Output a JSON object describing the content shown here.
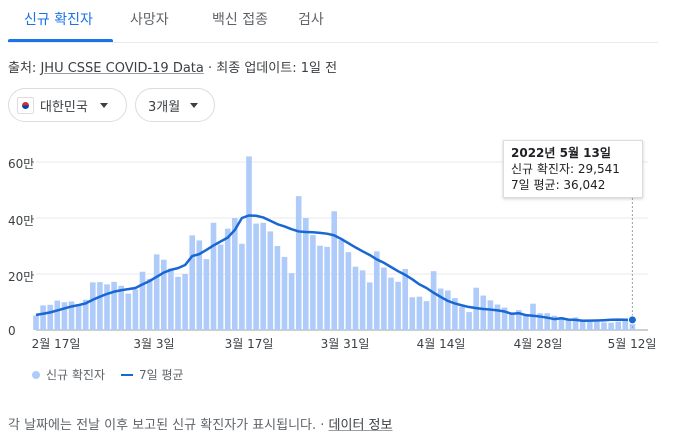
{
  "tabs": [
    {
      "label": "신규 확진자",
      "active": true
    },
    {
      "label": "사망자",
      "active": false
    },
    {
      "label": "백신 접종",
      "active": false
    },
    {
      "label": "검사",
      "active": false
    }
  ],
  "source": {
    "prefix": "출처:",
    "link": "JHU CSSE COVID-19 Data",
    "separator": "·",
    "updated": "최종 업데이트: 1일 전"
  },
  "filters": {
    "country": "대한민국",
    "period": "3개월"
  },
  "tooltip": {
    "date": "2022년 5월 13일",
    "cases": "신규 확진자: 29,541",
    "avg": "7일 평균: 36,042"
  },
  "legend": {
    "bars": "신규 확진자",
    "line": "7일 평균"
  },
  "footnote": {
    "text": "각 날짜에는 전날 이후 보고된 신규 확진자가 표시됩니다. ·",
    "link": "데이터 정보"
  },
  "colors": {
    "bar": "#aecbfa",
    "line": "#1967d2",
    "accent": "#1a73e8"
  },
  "chart_data": {
    "type": "bar",
    "y_tick_labels": [
      "0",
      "20만",
      "40만",
      "60만"
    ],
    "y_ticks": [
      0,
      200000,
      400000,
      600000
    ],
    "ylim": [
      0,
      620000
    ],
    "x_tick_labels": [
      "2월 17일",
      "3월 3일",
      "3월 17일",
      "3월 31일",
      "4월 14일",
      "4월 28일",
      "5월 12일"
    ],
    "x_tick_index": [
      0,
      14,
      28,
      42,
      56,
      70,
      84
    ],
    "series": [
      {
        "name": "신규 확진자",
        "values": [
          52000,
          88000,
          90000,
          105000,
          99000,
          102000,
          93000,
          108000,
          170000,
          171000,
          163000,
          172000,
          158000,
          130000,
          145000,
          208000,
          183000,
          270000,
          251000,
          220000,
          190000,
          200000,
          338000,
          320000,
          253000,
          383000,
          305000,
          362000,
          400000,
          308000,
          620000,
          380000,
          383000,
          352000,
          300000,
          261000,
          203000,
          478000,
          400000,
          339000,
          301000,
          297000,
          424000,
          321000,
          278000,
          226000,
          213000,
          170000,
          281000,
          223000,
          187000,
          172000,
          218000,
          117000,
          119000,
          103000,
          210000,
          148000,
          141000,
          114000,
          83000,
          64000,
          151000,
          123000,
          106000,
          91000,
          80000,
          62000,
          71000,
          50000,
          94000,
          60000,
          60000,
          51000,
          46000,
          40000,
          45000,
          38000,
          35000,
          29000,
          27000,
          26000,
          30000,
          35000,
          29541
        ],
        "color": "#aecbfa"
      },
      {
        "name": "7일 평균",
        "values": [
          54000,
          58000,
          63000,
          70000,
          77000,
          84000,
          89000,
          95000,
          108000,
          119000,
          129000,
          137000,
          142000,
          146000,
          150000,
          163000,
          175000,
          190000,
          205000,
          215000,
          221000,
          232000,
          264000,
          271000,
          286000,
          302000,
          316000,
          330000,
          357000,
          400000,
          409000,
          408000,
          402000,
          390000,
          378000,
          370000,
          360000,
          352000,
          350000,
          349000,
          347000,
          344000,
          338000,
          325000,
          310000,
          295000,
          281000,
          268000,
          252000,
          240000,
          225000,
          210000,
          197000,
          181000,
          163000,
          150000,
          133000,
          118000,
          104000,
          95000,
          88000,
          82000,
          78000,
          75000,
          73000,
          70000,
          66000,
          58000,
          60000,
          53000,
          51000,
          48000,
          44000,
          39000,
          42000,
          37000,
          36000,
          33000,
          33500,
          34000,
          35000,
          36500,
          37000,
          36500,
          36042
        ],
        "color": "#1967d2"
      }
    ],
    "highlight_index": 84
  }
}
